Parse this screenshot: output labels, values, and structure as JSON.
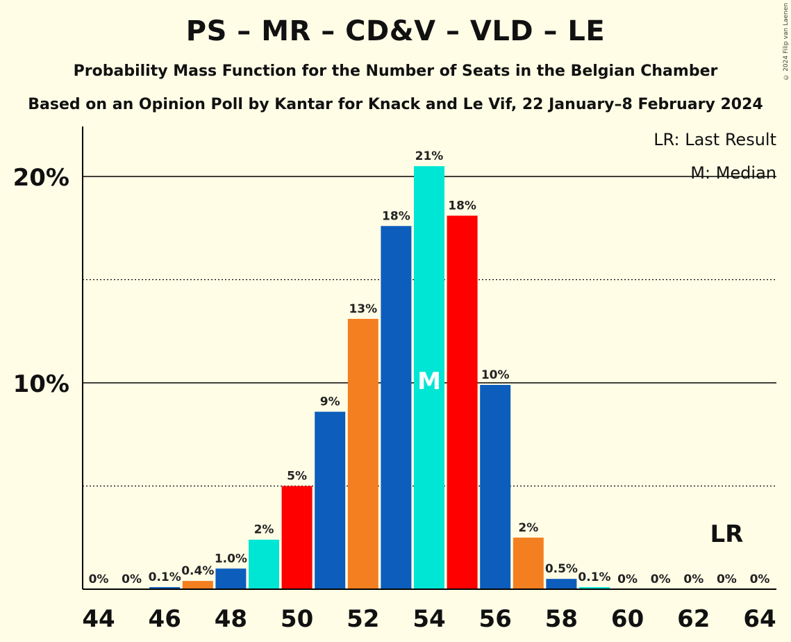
{
  "title": "PS – MR – CD&V – VLD – LE",
  "subtitle": "Probability Mass Function for the Number of Seats in the Belgian Chamber",
  "subtitle2": "Based on an Opinion Poll by Kantar for Knack and Le Vif, 22 January–8 February 2024",
  "copyright": "© 2024 Filip van Laenen",
  "legend": {
    "last_result": "LR: Last Result",
    "median": "M: Median"
  },
  "colors": {
    "background": "#FFFDE6",
    "palette": [
      "#0D5DBC",
      "#00E6D4",
      "#F47F20",
      "#FF0000"
    ]
  },
  "chart_data": {
    "type": "bar",
    "xlabel": "",
    "ylabel": "",
    "ylim": [
      0,
      22.5
    ],
    "yticks": [
      {
        "value": 10,
        "label": "10%"
      },
      {
        "value": 20,
        "label": "20%"
      }
    ],
    "dotted_gridlines": [
      5,
      15
    ],
    "xticks": [
      44,
      46,
      48,
      50,
      52,
      54,
      56,
      58,
      60,
      62,
      64
    ],
    "categories": [
      44,
      45,
      46,
      47,
      48,
      49,
      50,
      51,
      52,
      53,
      54,
      55,
      56,
      57,
      58,
      59,
      60,
      61,
      62,
      63,
      64
    ],
    "values": [
      0,
      0,
      0.1,
      0.4,
      1.0,
      2.4,
      5.0,
      8.6,
      13.1,
      17.6,
      20.5,
      18.1,
      9.9,
      2.5,
      0.5,
      0.1,
      0,
      0,
      0,
      0,
      0
    ],
    "labels": [
      "0%",
      "0%",
      "0.1%",
      "0.4%",
      "1.0%",
      "2%",
      "5%",
      "9%",
      "13%",
      "18%",
      "21%",
      "18%",
      "10%",
      "2%",
      "0.5%",
      "0.1%",
      "0%",
      "0%",
      "0%",
      "0%",
      "0%"
    ],
    "bar_colors": [
      "#0D5DBC",
      "#00E6D4",
      "#0D5DBC",
      "#F47F20",
      "#0D5DBC",
      "#00E6D4",
      "#FF0000",
      "#0D5DBC",
      "#F47F20",
      "#0D5DBC",
      "#00E6D4",
      "#FF0000",
      "#0D5DBC",
      "#F47F20",
      "#0D5DBC",
      "#00E6D4",
      "#FF0000",
      "#0D5DBC",
      "#F47F20",
      "#0D5DBC",
      "#00E6D4"
    ],
    "median": {
      "seats": 54,
      "label": "M"
    },
    "last_result": {
      "seats": 63,
      "label": "LR"
    }
  }
}
